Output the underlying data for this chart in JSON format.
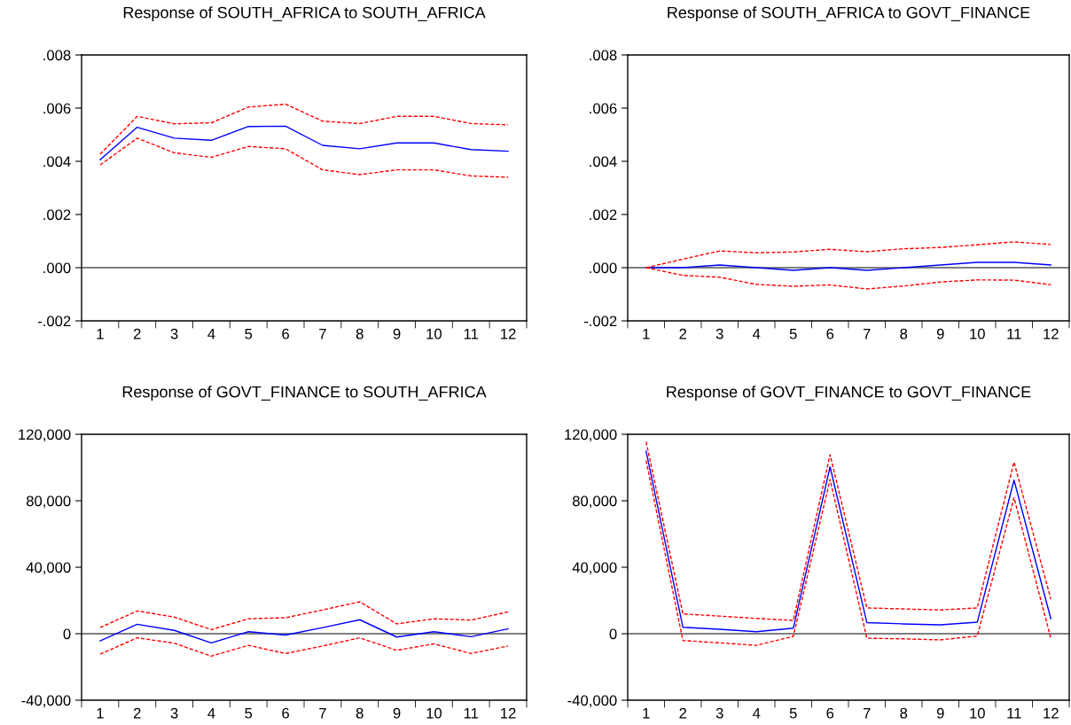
{
  "chart_data": [
    {
      "type": "line",
      "title": "Response of SOUTH_AFRICA to SOUTH_AFRICA",
      "categories": [
        "1",
        "2",
        "3",
        "4",
        "5",
        "6",
        "7",
        "8",
        "9",
        "10",
        "11",
        "12"
      ],
      "ylim": [
        -0.002,
        0.008
      ],
      "yticks": [
        {
          "value": -0.002,
          "label": "-.002"
        },
        {
          "value": 0,
          "label": ".000"
        },
        {
          "value": 0.002,
          "label": ".002"
        },
        {
          "value": 0.004,
          "label": ".004"
        },
        {
          "value": 0.006,
          "label": ".006"
        },
        {
          "value": 0.008,
          "label": ".008"
        }
      ],
      "grid": false,
      "legend": false,
      "ref_lines": [
        {
          "axis": "y",
          "value": 0,
          "color": "#000000",
          "line_style": "solid"
        }
      ],
      "series": [
        {
          "color": "#0000ff",
          "line_style": "solid",
          "values": [
            0.00406,
            0.00528,
            0.00487,
            0.00479,
            0.00531,
            0.00532,
            0.0046,
            0.00447,
            0.00469,
            0.00469,
            0.00444,
            0.00438
          ]
        },
        {
          "color": "#ff0000",
          "line_style": "dashed",
          "values": [
            0.00427,
            0.00569,
            0.00541,
            0.00545,
            0.00604,
            0.00615,
            0.00551,
            0.00542,
            0.00569,
            0.00569,
            0.00542,
            0.00537
          ]
        },
        {
          "color": "#ff0000",
          "line_style": "dashed",
          "values": [
            0.00386,
            0.00487,
            0.00432,
            0.00415,
            0.00456,
            0.00447,
            0.00368,
            0.0035,
            0.00368,
            0.00368,
            0.00345,
            0.0034
          ]
        }
      ]
    },
    {
      "type": "line",
      "title": "Response of SOUTH_AFRICA to GOVT_FINANCE",
      "categories": [
        "1",
        "2",
        "3",
        "4",
        "5",
        "6",
        "7",
        "8",
        "9",
        "10",
        "11",
        "12"
      ],
      "ylim": [
        -0.002,
        0.008
      ],
      "yticks": [
        {
          "value": -0.002,
          "label": "-.002"
        },
        {
          "value": 0,
          "label": ".000"
        },
        {
          "value": 0.002,
          "label": ".002"
        },
        {
          "value": 0.004,
          "label": ".004"
        },
        {
          "value": 0.006,
          "label": ".006"
        },
        {
          "value": 0.008,
          "label": ".008"
        }
      ],
      "grid": false,
      "legend": false,
      "ref_lines": [
        {
          "axis": "y",
          "value": 0,
          "color": "#000000",
          "line_style": "solid"
        }
      ],
      "series": [
        {
          "color": "#0000ff",
          "line_style": "solid",
          "values": [
            0,
            0,
            0.0001,
            0,
            -0.0001,
            0,
            -0.0001,
            0,
            0.0001,
            0.0002,
            0.0002,
            0.0001
          ]
        },
        {
          "color": "#ff0000",
          "line_style": "dashed",
          "values": [
            0,
            0.00032,
            0.00063,
            0.00056,
            0.00059,
            0.00069,
            0.0006,
            0.00071,
            0.00076,
            0.00086,
            0.00097,
            0.00087
          ]
        },
        {
          "color": "#ff0000",
          "line_style": "dashed",
          "values": [
            0,
            -0.00029,
            -0.00036,
            -0.00063,
            -0.0007,
            -0.00065,
            -0.0008,
            -0.00069,
            -0.00054,
            -0.00046,
            -0.00047,
            -0.00064
          ]
        }
      ]
    },
    {
      "type": "line",
      "title": "Response of GOVT_FINANCE to SOUTH_AFRICA",
      "categories": [
        "1",
        "2",
        "3",
        "4",
        "5",
        "6",
        "7",
        "8",
        "9",
        "10",
        "11",
        "12"
      ],
      "ylim": [
        -40000,
        120000
      ],
      "yticks": [
        {
          "value": -40000,
          "label": "-40,000"
        },
        0,
        {
          "value": 40000,
          "label": "40,000"
        },
        {
          "value": 80000,
          "label": "80,000"
        },
        {
          "value": 120000,
          "label": "120,000"
        }
      ],
      "grid": false,
      "legend": false,
      "ref_lines": [
        {
          "axis": "y",
          "value": 0,
          "color": "#000000",
          "line_style": "solid"
        }
      ],
      "series": [
        {
          "color": "#0000ff",
          "line_style": "solid",
          "values": [
            -4300,
            5700,
            2000,
            -5500,
            1200,
            -800,
            3700,
            8400,
            -2000,
            1200,
            -1800,
            2900
          ]
        },
        {
          "color": "#ff0000",
          "line_style": "dashed",
          "values": [
            3700,
            13700,
            10000,
            2500,
            9000,
            9600,
            14300,
            19200,
            5900,
            9000,
            8200,
            13100
          ]
        },
        {
          "color": "#ff0000",
          "line_style": "dashed",
          "values": [
            -12300,
            -2500,
            -5700,
            -13500,
            -7000,
            -11900,
            -7400,
            -2500,
            -10000,
            -6100,
            -11900,
            -7400
          ]
        }
      ]
    },
    {
      "type": "line",
      "title": "Response of GOVT_FINANCE to GOVT_FINANCE",
      "categories": [
        "1",
        "2",
        "3",
        "4",
        "5",
        "6",
        "7",
        "8",
        "9",
        "10",
        "11",
        "12"
      ],
      "ylim": [
        -40000,
        120000
      ],
      "yticks": [
        {
          "value": -40000,
          "label": "-40,000"
        },
        0,
        {
          "value": 40000,
          "label": "40,000"
        },
        {
          "value": 80000,
          "label": "80,000"
        },
        {
          "value": 120000,
          "label": "120,000"
        }
      ],
      "grid": false,
      "legend": false,
      "ref_lines": [
        {
          "axis": "y",
          "value": 0,
          "color": "#000000",
          "line_style": "solid"
        }
      ],
      "series": [
        {
          "color": "#0000ff",
          "line_style": "solid",
          "values": [
            109800,
            3900,
            2700,
            1200,
            3300,
            100400,
            6700,
            5900,
            5300,
            6900,
            92400,
            9000
          ]
        },
        {
          "color": "#ff0000",
          "line_style": "dashed",
          "values": [
            115500,
            11900,
            10600,
            9200,
            8000,
            107700,
            15500,
            14900,
            14300,
            15500,
            103200,
            20800
          ]
        },
        {
          "color": "#ff0000",
          "line_style": "dashed",
          "values": [
            104200,
            -4100,
            -5500,
            -7000,
            -1600,
            92800,
            -2700,
            -3100,
            -3700,
            -1400,
            81800,
            -2700
          ]
        }
      ]
    }
  ]
}
